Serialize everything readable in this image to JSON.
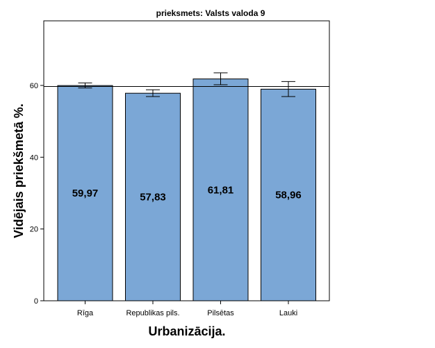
{
  "chart_data": {
    "type": "bar",
    "title": "prieksmets: Valsts valoda 9",
    "xlabel": "Urbanizācija.",
    "ylabel": "Vidējais priekšmetā %.",
    "categories": [
      "Rīga",
      "Republikas pils.",
      "Pilsētas",
      "Lauki"
    ],
    "values": [
      59.97,
      57.83,
      61.81,
      58.96
    ],
    "data_labels": [
      "59,97",
      "57,83",
      "61,81",
      "58,96"
    ],
    "error_low": [
      59.3,
      56.9,
      60.2,
      56.9
    ],
    "error_high": [
      60.7,
      58.8,
      63.5,
      61.1
    ],
    "reference_line": 59.7,
    "ylim": [
      0,
      78
    ],
    "yticks": [
      0,
      20,
      40,
      60
    ],
    "ytick_labels": [
      "0",
      "20",
      "40",
      "60"
    ],
    "grid": false,
    "colors": {
      "bar_fill": "#7BA7D6",
      "bar_stroke": "#000000"
    }
  }
}
